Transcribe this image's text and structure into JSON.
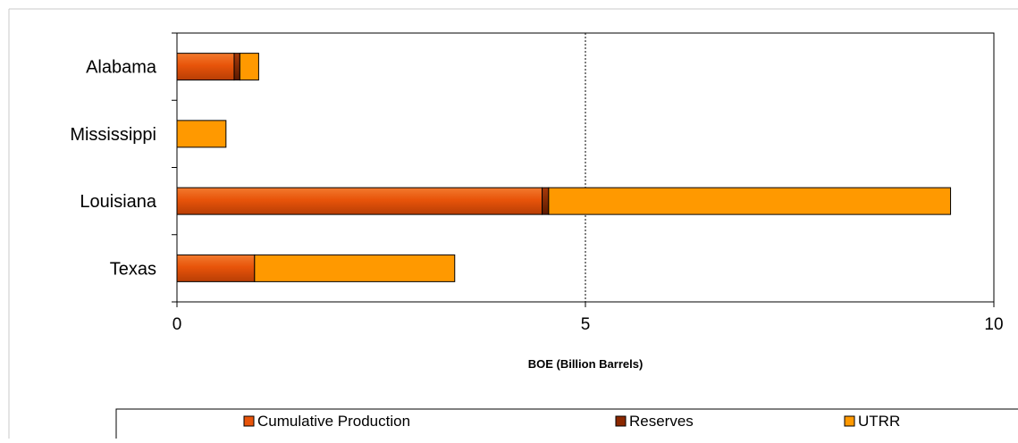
{
  "chart_data": {
    "type": "bar",
    "orientation": "horizontal",
    "stacked": true,
    "categories": [
      "Alabama",
      "Mississippi",
      "Louisiana",
      "Texas"
    ],
    "series": [
      {
        "name": "Cumulative Production",
        "values": [
          0.7,
          0.0,
          4.47,
          0.95
        ],
        "color": "#E8540A"
      },
      {
        "name": "Reserves",
        "values": [
          0.07,
          0.0,
          0.08,
          0.0
        ],
        "color": "#8B2800"
      },
      {
        "name": "UTRR",
        "values": [
          0.23,
          0.6,
          4.92,
          2.45
        ],
        "color": "#FF9900"
      }
    ],
    "title": "",
    "xlabel": "BOE (Billion Barrels)",
    "ylabel": "",
    "xlim": [
      0,
      10
    ],
    "xticks": [
      "0",
      "5",
      "10"
    ],
    "reference_line": {
      "x": 5,
      "style": "dotted"
    },
    "grid": false,
    "legend_position": "bottom"
  }
}
